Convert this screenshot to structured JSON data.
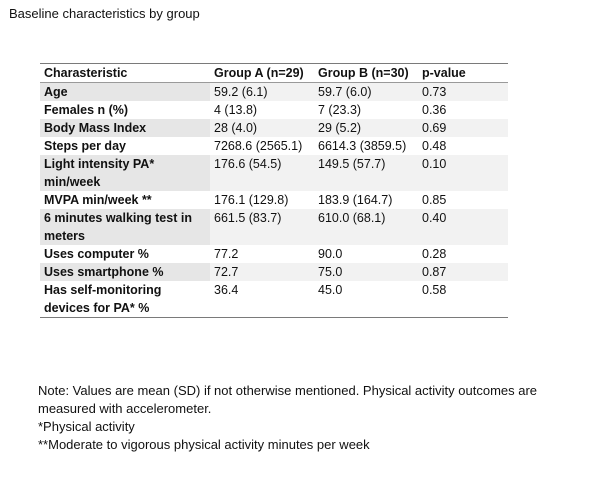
{
  "caption": "Baseline characteristics by group",
  "table": {
    "headers": [
      "Charasteristic",
      "Group A (n=29)",
      "Group B (n=30)",
      "p-value"
    ],
    "rows": [
      {
        "label": "Age",
        "a": "59.2 (6.1)",
        "b": "59.7 (6.0)",
        "p": "0.73",
        "shaded": true
      },
      {
        "label": "Females n (%)",
        "a": "4 (13.8)",
        "b": "7 (23.3)",
        "p": "0.36",
        "shaded": false
      },
      {
        "label": "Body Mass Index",
        "a": "28 (4.0)",
        "b": "29 (5.2)",
        "p": "0.69",
        "shaded": true
      },
      {
        "label": "Steps per day",
        "a": "7268.6 (2565.1)",
        "b": "6614.3 (3859.5)",
        "p": "0.48",
        "shaded": false
      },
      {
        "label": "Light intensity PA* min/week",
        "a": "176.6 (54.5)",
        "b": "149.5 (57.7)",
        "p": "0.10",
        "shaded": true
      },
      {
        "label": "MVPA min/week **",
        "a": "176.1 (129.8)",
        "b": "183.9 (164.7)",
        "p": "0.85",
        "shaded": false
      },
      {
        "label": "6 minutes walking test in meters",
        "a": "661.5 (83.7)",
        "b": "610.0 (68.1)",
        "p": "0.40",
        "shaded": true
      },
      {
        "label": "Uses computer %",
        "a": "77.2",
        "b": "90.0",
        "p": "0.28",
        "shaded": false
      },
      {
        "label": "Uses smartphone %",
        "a": "72.7",
        "b": "75.0",
        "p": "0.87",
        "shaded": true
      },
      {
        "label": "Has self-monitoring devices for PA* %",
        "a": "36.4",
        "b": "45.0",
        "p": "0.58",
        "shaded": false
      }
    ]
  },
  "notes": [
    "Note: Values are mean (SD) if not otherwise mentioned. Physical activity outcomes are",
    "measured with accelerometer.",
    "*Physical activity",
    "**Moderate to vigorous physical activity minutes per week"
  ]
}
